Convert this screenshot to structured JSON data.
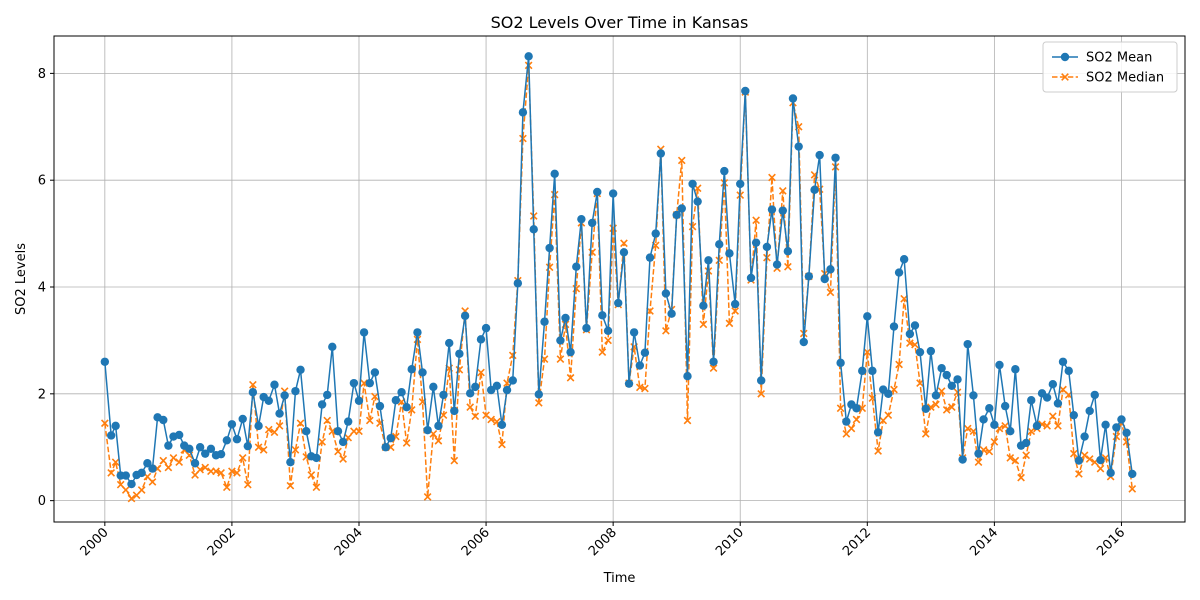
{
  "chart_data": {
    "type": "line",
    "title": "SO2 Levels Over Time in Kansas",
    "xlabel": "Time",
    "ylabel": "SO2 Levels",
    "x_ticks": [
      "2000",
      "2002",
      "2004",
      "2006",
      "2008",
      "2010",
      "2012",
      "2014",
      "2016"
    ],
    "y_ticks": [
      "0",
      "2",
      "4",
      "6",
      "8"
    ],
    "xlim": [
      1999.2,
      2017.0
    ],
    "ylim": [
      -0.4,
      8.7
    ],
    "grid": true,
    "legend_position": "top-right",
    "series": [
      {
        "name": "SO2 Mean",
        "color": "#1f77b4",
        "line_style": "solid",
        "marker": "circle",
        "x": [
          2000.0,
          2000.1,
          2000.17,
          2000.25,
          2000.33,
          2000.42,
          2000.5,
          2000.58,
          2000.67,
          2000.75,
          2000.83,
          2000.92,
          2001.0,
          2001.08,
          2001.17,
          2001.25,
          2001.33,
          2001.42,
          2001.5,
          2001.58,
          2001.67,
          2001.75,
          2001.83,
          2001.92,
          2002.0,
          2002.08,
          2002.17,
          2002.25,
          2002.33,
          2002.42,
          2002.5,
          2002.58,
          2002.67,
          2002.75,
          2002.83,
          2002.92,
          2003.0,
          2003.08,
          2003.17,
          2003.25,
          2003.33,
          2003.42,
          2003.5,
          2003.58,
          2003.67,
          2003.75,
          2003.83,
          2003.92,
          2004.0,
          2004.08,
          2004.17,
          2004.25,
          2004.33,
          2004.42,
          2004.5,
          2004.58,
          2004.67,
          2004.75,
          2004.83,
          2004.92,
          2005.0,
          2005.08,
          2005.17,
          2005.25,
          2005.33,
          2005.42,
          2005.5,
          2005.58,
          2005.67,
          2005.75,
          2005.83,
          2005.92,
          2006.0,
          2006.08,
          2006.17,
          2006.25,
          2006.33,
          2006.42,
          2006.5,
          2006.58,
          2006.67,
          2006.75,
          2006.83,
          2006.92,
          2007.0,
          2007.08,
          2007.17,
          2007.25,
          2007.33,
          2007.42,
          2007.5,
          2007.58,
          2007.67,
          2007.75,
          2007.83,
          2007.92,
          2008.0,
          2008.08,
          2008.17,
          2008.25,
          2008.33,
          2008.42,
          2008.5,
          2008.58,
          2008.67,
          2008.75,
          2008.83,
          2008.92,
          2009.0,
          2009.08,
          2009.17,
          2009.25,
          2009.33,
          2009.42,
          2009.5,
          2009.58,
          2009.67,
          2009.75,
          2009.83,
          2009.92,
          2010.0,
          2010.08,
          2010.17,
          2010.25,
          2010.33,
          2010.42,
          2010.5,
          2010.58,
          2010.67,
          2010.75,
          2010.83,
          2010.92,
          2011.0,
          2011.08,
          2011.17,
          2011.25,
          2011.33,
          2011.42,
          2011.5,
          2011.58,
          2011.67,
          2011.75,
          2011.83,
          2011.92,
          2012.0,
          2012.08,
          2012.17,
          2012.25,
          2012.33,
          2012.42,
          2012.5,
          2012.58,
          2012.67,
          2012.75,
          2012.83,
          2012.92,
          2013.0,
          2013.08,
          2013.17,
          2013.25,
          2013.33,
          2013.42,
          2013.5,
          2013.58,
          2013.67,
          2013.75,
          2013.83,
          2013.92,
          2014.0,
          2014.08,
          2014.17,
          2014.25,
          2014.33,
          2014.42,
          2014.5,
          2014.58,
          2014.67,
          2014.75,
          2014.83,
          2014.92,
          2015.0,
          2015.08,
          2015.17,
          2015.25,
          2015.33,
          2015.42,
          2015.5,
          2015.58,
          2015.67,
          2015.75,
          2015.83,
          2015.92,
          2016.0,
          2016.08,
          2016.17
        ],
        "values": [
          2.6,
          1.22,
          1.4,
          0.47,
          0.47,
          0.31,
          0.48,
          0.52,
          0.7,
          0.6,
          1.56,
          1.51,
          1.03,
          1.2,
          1.23,
          1.03,
          0.97,
          0.7,
          1.0,
          0.88,
          0.97,
          0.85,
          0.87,
          1.13,
          1.43,
          1.15,
          1.53,
          1.02,
          2.03,
          1.4,
          1.94,
          1.87,
          2.17,
          1.63,
          1.97,
          0.72,
          2.05,
          2.45,
          1.3,
          0.83,
          0.8,
          1.8,
          1.98,
          2.88,
          1.3,
          1.1,
          1.48,
          2.2,
          1.87,
          3.15,
          2.2,
          2.4,
          1.77,
          1.0,
          1.17,
          1.88,
          2.03,
          1.75,
          2.46,
          3.15,
          2.4,
          1.32,
          2.13,
          1.4,
          1.98,
          2.95,
          1.68,
          2.75,
          3.46,
          2.01,
          2.13,
          3.02,
          3.23,
          2.07,
          2.15,
          1.42,
          2.07,
          2.25,
          4.07,
          7.27,
          8.32,
          5.08,
          1.99,
          3.35,
          4.73,
          6.12,
          3.0,
          3.42,
          2.78,
          4.38,
          5.27,
          3.23,
          5.2,
          5.78,
          3.47,
          3.18,
          5.75,
          3.7,
          4.65,
          2.19,
          3.15,
          2.53,
          2.77,
          4.55,
          5.0,
          6.5,
          3.88,
          3.5,
          5.35,
          5.47,
          2.33,
          5.93,
          5.6,
          3.65,
          4.5,
          2.6,
          4.8,
          6.17,
          4.63,
          3.68,
          5.93,
          7.67,
          4.17,
          4.83,
          2.25,
          4.75,
          5.45,
          4.42,
          5.43,
          4.67,
          7.53,
          6.63,
          2.97,
          4.2,
          5.82,
          6.47,
          4.15,
          4.33,
          6.42,
          2.58,
          1.48,
          1.8,
          1.73,
          2.43,
          3.45,
          2.43,
          1.28,
          2.08,
          2.0,
          3.26,
          4.27,
          4.52,
          3.12,
          3.28,
          2.78,
          1.72,
          2.8,
          1.97,
          2.48,
          2.35,
          2.15,
          2.27,
          0.77,
          2.93,
          1.97,
          0.88,
          1.52,
          1.73,
          1.42,
          2.54,
          1.77,
          1.3,
          2.46,
          1.03,
          1.08,
          1.88,
          1.4,
          2.01,
          1.93,
          2.18,
          1.82,
          2.6,
          2.43,
          1.6,
          0.75,
          1.2,
          1.68,
          1.98,
          0.76,
          1.42,
          0.52,
          1.37,
          1.52,
          1.27,
          0.5
        ]
      },
      {
        "name": "SO2 Median",
        "color": "#ff7f0e",
        "line_style": "dashed",
        "marker": "x",
        "x": [
          2000.0,
          2000.1,
          2000.17,
          2000.25,
          2000.33,
          2000.42,
          2000.5,
          2000.58,
          2000.67,
          2000.75,
          2000.83,
          2000.92,
          2001.0,
          2001.08,
          2001.17,
          2001.25,
          2001.33,
          2001.42,
          2001.5,
          2001.58,
          2001.67,
          2001.75,
          2001.83,
          2001.92,
          2002.0,
          2002.08,
          2002.17,
          2002.25,
          2002.33,
          2002.42,
          2002.5,
          2002.58,
          2002.67,
          2002.75,
          2002.83,
          2002.92,
          2003.0,
          2003.08,
          2003.17,
          2003.25,
          2003.33,
          2003.42,
          2003.5,
          2003.58,
          2003.67,
          2003.75,
          2003.83,
          2003.92,
          2004.0,
          2004.08,
          2004.17,
          2004.25,
          2004.33,
          2004.42,
          2004.5,
          2004.58,
          2004.67,
          2004.75,
          2004.83,
          2004.92,
          2005.0,
          2005.08,
          2005.17,
          2005.25,
          2005.33,
          2005.42,
          2005.5,
          2005.58,
          2005.67,
          2005.75,
          2005.83,
          2005.92,
          2006.0,
          2006.08,
          2006.17,
          2006.25,
          2006.33,
          2006.42,
          2006.5,
          2006.58,
          2006.67,
          2006.75,
          2006.83,
          2006.92,
          2007.0,
          2007.08,
          2007.17,
          2007.25,
          2007.33,
          2007.42,
          2007.5,
          2007.58,
          2007.67,
          2007.75,
          2007.83,
          2007.92,
          2008.0,
          2008.08,
          2008.17,
          2008.25,
          2008.33,
          2008.42,
          2008.5,
          2008.58,
          2008.67,
          2008.75,
          2008.83,
          2008.92,
          2009.0,
          2009.08,
          2009.17,
          2009.25,
          2009.33,
          2009.42,
          2009.5,
          2009.58,
          2009.67,
          2009.75,
          2009.83,
          2009.92,
          2010.0,
          2010.08,
          2010.17,
          2010.25,
          2010.33,
          2010.42,
          2010.5,
          2010.58,
          2010.67,
          2010.75,
          2010.83,
          2010.92,
          2011.0,
          2011.08,
          2011.17,
          2011.25,
          2011.33,
          2011.42,
          2011.5,
          2011.58,
          2011.67,
          2011.75,
          2011.83,
          2011.92,
          2012.0,
          2012.08,
          2012.17,
          2012.25,
          2012.33,
          2012.42,
          2012.5,
          2012.58,
          2012.67,
          2012.75,
          2012.83,
          2012.92,
          2013.0,
          2013.08,
          2013.17,
          2013.25,
          2013.33,
          2013.42,
          2013.5,
          2013.58,
          2013.67,
          2013.75,
          2013.83,
          2013.92,
          2014.0,
          2014.08,
          2014.17,
          2014.25,
          2014.33,
          2014.42,
          2014.5,
          2014.58,
          2014.67,
          2014.75,
          2014.83,
          2014.92,
          2015.0,
          2015.08,
          2015.17,
          2015.25,
          2015.33,
          2015.42,
          2015.5,
          2015.58,
          2015.67,
          2015.75,
          2015.83,
          2015.92,
          2016.0,
          2016.08,
          2016.17
        ],
        "values": [
          1.45,
          0.52,
          0.72,
          0.3,
          0.2,
          0.04,
          0.1,
          0.2,
          0.45,
          0.35,
          0.6,
          0.75,
          0.62,
          0.8,
          0.72,
          0.95,
          0.85,
          0.48,
          0.58,
          0.62,
          0.55,
          0.55,
          0.52,
          0.25,
          0.55,
          0.52,
          0.8,
          0.3,
          2.17,
          1.0,
          0.95,
          1.33,
          1.28,
          1.4,
          2.05,
          0.28,
          0.95,
          1.45,
          0.82,
          0.48,
          0.25,
          1.1,
          1.5,
          1.3,
          0.92,
          0.78,
          1.18,
          1.3,
          1.3,
          2.2,
          1.5,
          1.95,
          1.45,
          1.0,
          1.0,
          1.2,
          1.85,
          1.08,
          1.7,
          3.02,
          1.85,
          0.07,
          1.25,
          1.12,
          1.6,
          2.48,
          0.75,
          2.45,
          3.55,
          1.75,
          1.58,
          2.4,
          1.6,
          1.52,
          1.48,
          1.05,
          2.2,
          2.72,
          4.12,
          6.78,
          8.15,
          5.33,
          1.83,
          2.65,
          4.37,
          5.73,
          2.65,
          3.3,
          2.3,
          3.97,
          5.2,
          3.2,
          4.65,
          5.75,
          2.78,
          3.0,
          5.1,
          3.67,
          4.82,
          2.2,
          2.88,
          2.12,
          2.1,
          3.55,
          4.78,
          6.58,
          3.18,
          3.58,
          5.35,
          6.37,
          1.5,
          5.13,
          5.85,
          3.3,
          4.3,
          2.48,
          4.5,
          5.95,
          3.32,
          3.55,
          5.72,
          7.65,
          4.13,
          5.25,
          2.0,
          4.55,
          6.05,
          4.35,
          5.8,
          4.38,
          7.45,
          7.0,
          3.13,
          4.2,
          6.1,
          5.83,
          4.25,
          3.9,
          6.25,
          1.73,
          1.25,
          1.35,
          1.52,
          1.73,
          2.78,
          1.92,
          0.93,
          1.5,
          1.6,
          2.08,
          2.55,
          3.78,
          2.95,
          2.92,
          2.2,
          1.25,
          1.75,
          1.8,
          2.05,
          1.7,
          1.75,
          2.03,
          0.8,
          1.35,
          1.3,
          0.72,
          0.95,
          0.92,
          1.1,
          1.35,
          1.4,
          0.8,
          0.75,
          0.43,
          0.85,
          1.3,
          1.35,
          1.43,
          1.4,
          1.58,
          1.4,
          2.08,
          1.98,
          0.88,
          0.5,
          0.85,
          0.78,
          0.72,
          0.6,
          0.8,
          0.45,
          1.2,
          1.45,
          1.1,
          0.22
        ]
      }
    ]
  }
}
